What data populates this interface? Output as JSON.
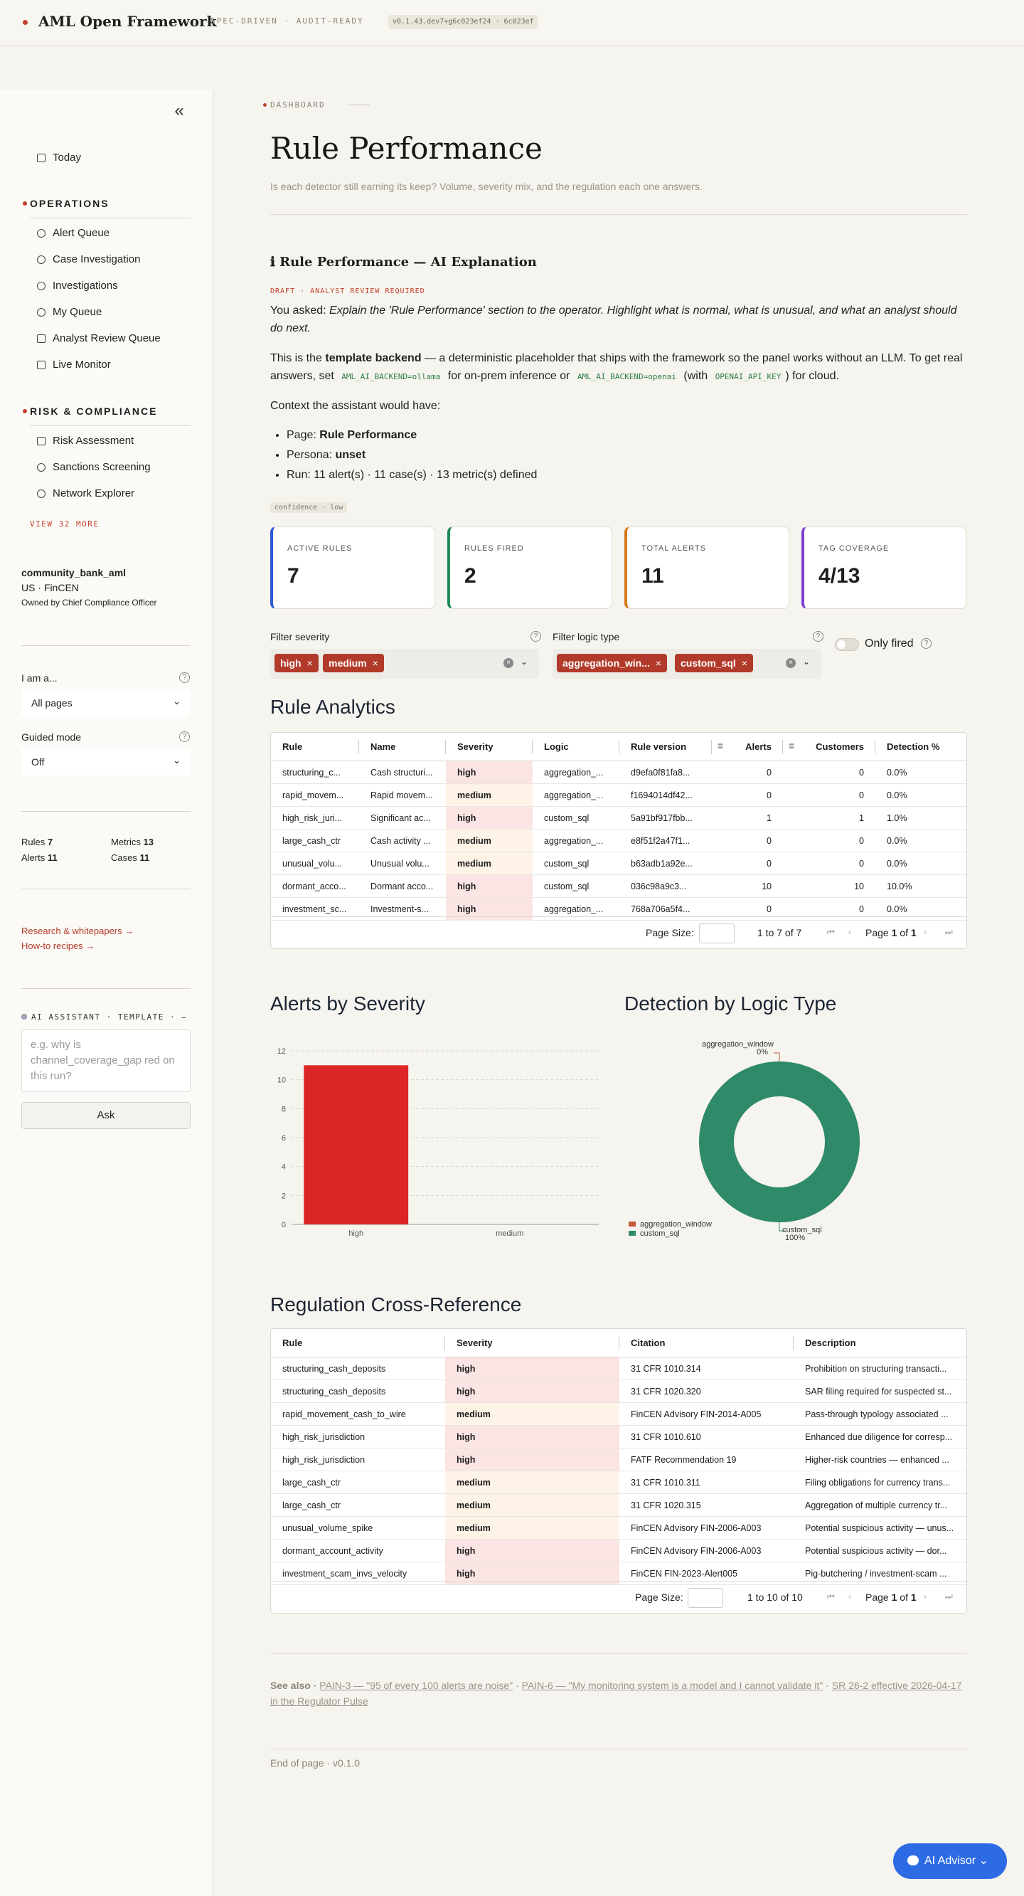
{
  "header": {
    "brand": "AML Open Framework",
    "tagline": "SPEC-DRIVEN · AUDIT-READY",
    "version": "v0.1.43.dev7+g6c023ef24 · 6c023ef"
  },
  "sidebar": {
    "collapse_glyph": "«",
    "today": "Today",
    "sections": [
      {
        "title": "OPERATIONS",
        "items": [
          "Alert Queue",
          "Case Investigation",
          "Investigations",
          "My Queue",
          "Analyst Review Queue",
          "Live Monitor"
        ]
      },
      {
        "title": "RISK & COMPLIANCE",
        "items": [
          "Risk Assessment",
          "Sanctions Screening",
          "Network Explorer"
        ]
      }
    ],
    "view_more": "VIEW 32 MORE",
    "tenant": {
      "name": "community_bank_aml",
      "region": "US · FinCEN",
      "owner": "Owned by Chief Compliance Officer"
    },
    "persona": {
      "label": "I am a...",
      "value": "All pages"
    },
    "guided": {
      "label": "Guided mode",
      "value": "Off"
    },
    "stats": {
      "rules_label": "Rules",
      "rules": "7",
      "metrics_label": "Metrics",
      "metrics": "13",
      "alerts_label": "Alerts",
      "alerts": "11",
      "cases_label": "Cases",
      "cases": "11"
    },
    "links": [
      "Research & whitepapers →",
      "How-to recipes →"
    ],
    "ai": {
      "head": "AI ASSISTANT · TEMPLATE · —",
      "placeholder": "e.g. why is channel_coverage_gap red on this run?",
      "ask": "Ask"
    }
  },
  "page": {
    "eyebrow": "DASHBOARD",
    "title": "Rule Performance",
    "subtitle": "Is each detector still earning its keep? Volume, severity mix, and the regulation each one answers.",
    "explain": {
      "heading": "ℹ Rule Performance — AI Explanation",
      "draft": "DRAFT · ANALYST REVIEW REQUIRED",
      "asked_prefix": "You asked: ",
      "asked": "Explain the 'Rule Performance' section to the operator. Highlight what is normal, what is unusual, and what an analyst should do next.",
      "p2_a": "This is the ",
      "p2_b": "template backend",
      "p2_c": " — a deterministic placeholder that ships with the framework so the panel works without an LLM. To get real answers, set ",
      "code1": "AML_AI_BACKEND=ollama",
      "p2_d": " for on-prem inference or ",
      "code2": "AML_AI_BACKEND=openai",
      "p2_e": " (with ",
      "code3": "OPENAI_API_KEY",
      "p2_f": ") for cloud.",
      "context": "Context the assistant would have:",
      "b1_label": "Page: ",
      "b1_value": "Rule Performance",
      "b2_label": "Persona: ",
      "b2_value": "unset",
      "b3": "Run: 11 alert(s) · 11 case(s) · 13 metric(s) defined",
      "confidence": "confidence · low"
    },
    "kpis": [
      {
        "label": "ACTIVE RULES",
        "value": "7",
        "color": "#2d5bd6"
      },
      {
        "label": "RULES FIRED",
        "value": "2",
        "color": "#1f8a5a"
      },
      {
        "label": "TOTAL ALERTS",
        "value": "11",
        "color": "#d8781d"
      },
      {
        "label": "TAG COVERAGE",
        "value": "4/13",
        "color": "#7b3fd6"
      }
    ],
    "filters": {
      "severity_label": "Filter severity",
      "severity_chips": [
        "high",
        "medium"
      ],
      "logic_label": "Filter logic type",
      "logic_chips": [
        "aggregation_win...",
        "custom_sql"
      ],
      "only_fired": "Only fired"
    },
    "analytics": {
      "title": "Rule Analytics",
      "columns": [
        "Rule",
        "Name",
        "Severity",
        "Logic",
        "Rule version",
        "Alerts",
        "Customers",
        "Detection %"
      ],
      "rows": [
        [
          "structuring_c...",
          "Cash structuri...",
          "high",
          "aggregation_...",
          "d9efa0f81fa8...",
          "0",
          "0",
          "0.0%"
        ],
        [
          "rapid_movem...",
          "Rapid movem...",
          "medium",
          "aggregation_...",
          "f1694014df42...",
          "0",
          "0",
          "0.0%"
        ],
        [
          "high_risk_juri...",
          "Significant ac...",
          "high",
          "custom_sql",
          "5a91bf917fbb...",
          "1",
          "1",
          "1.0%"
        ],
        [
          "large_cash_ctr",
          "Cash activity ...",
          "medium",
          "aggregation_...",
          "e8f51f2a47f1...",
          "0",
          "0",
          "0.0%"
        ],
        [
          "unusual_volu...",
          "Unusual volu...",
          "medium",
          "custom_sql",
          "b63adb1a92e...",
          "0",
          "0",
          "0.0%"
        ],
        [
          "dormant_acco...",
          "Dormant acco...",
          "high",
          "custom_sql",
          "036c98a9c3...",
          "10",
          "10",
          "10.0%"
        ],
        [
          "investment_sc...",
          "Investment-s...",
          "high",
          "aggregation_...",
          "768a706a5f4...",
          "0",
          "0",
          "0.0%"
        ]
      ],
      "page_size_label": "Page Size:",
      "range": "1 to 7 of 7",
      "page_prefix": "Page ",
      "page": "1",
      "of": " of ",
      "pages": "1"
    },
    "severity_chart": {
      "title": "Alerts by Severity"
    },
    "logic_chart": {
      "title": "Detection by Logic Type"
    },
    "regulation": {
      "title": "Regulation Cross-Reference",
      "columns": [
        "Rule",
        "Severity",
        "Citation",
        "Description"
      ],
      "rows": [
        [
          "structuring_cash_deposits",
          "high",
          "31 CFR 1010.314",
          "Prohibition on structuring transacti..."
        ],
        [
          "structuring_cash_deposits",
          "high",
          "31 CFR 1020.320",
          "SAR filing required for suspected st..."
        ],
        [
          "rapid_movement_cash_to_wire",
          "medium",
          "FinCEN Advisory FIN-2014-A005",
          "Pass-through typology associated ..."
        ],
        [
          "high_risk_jurisdiction",
          "high",
          "31 CFR 1010.610",
          "Enhanced due diligence for corresp..."
        ],
        [
          "high_risk_jurisdiction",
          "high",
          "FATF Recommendation 19",
          "Higher-risk countries — enhanced ..."
        ],
        [
          "large_cash_ctr",
          "medium",
          "31 CFR 1010.311",
          "Filing obligations for currency trans..."
        ],
        [
          "large_cash_ctr",
          "medium",
          "31 CFR 1020.315",
          "Aggregation of multiple currency tr..."
        ],
        [
          "unusual_volume_spike",
          "medium",
          "FinCEN Advisory FIN-2006-A003",
          "Potential suspicious activity — unus..."
        ],
        [
          "dormant_account_activity",
          "high",
          "FinCEN Advisory FIN-2006-A003",
          "Potential suspicious activity — dor..."
        ],
        [
          "investment_scam_invs_velocity",
          "high",
          "FinCEN FIN-2023-Alert005",
          "Pig-butchering / investment-scam ..."
        ]
      ],
      "page_size_label": "Page Size:",
      "range": "1 to 10 of 10",
      "page_prefix": "Page ",
      "page": "1",
      "of": " of ",
      "pages": "1"
    },
    "see_also_prefix": "See also · ",
    "see_also": [
      "PAIN-3 — \"95 of every 100 alerts are noise\"",
      "PAIN-6 — \"My monitoring system is a model and I cannot validate it\"",
      "SR 26-2 effective 2026-04-17 in the Regulator Pulse"
    ],
    "footer": "End of page · v0.1.0",
    "advisor": "AI Advisor ⌄"
  },
  "chart_data": [
    {
      "type": "bar",
      "title": "Alerts by Severity",
      "categories": [
        "high",
        "medium"
      ],
      "values": [
        11,
        0
      ],
      "ylim": [
        0,
        12
      ],
      "yticks": [
        0,
        2,
        4,
        6,
        8,
        10,
        12
      ],
      "grid": true,
      "color": "#dc2626"
    },
    {
      "type": "pie",
      "title": "Detection by Logic Type",
      "donut": true,
      "labels": [
        "aggregation_window",
        "custom_sql"
      ],
      "values": [
        0,
        100
      ],
      "value_labels": [
        "0%",
        "100%"
      ],
      "colors": [
        "#c8563e",
        "#2f8a6a"
      ],
      "legend": "bottom-left"
    }
  ]
}
